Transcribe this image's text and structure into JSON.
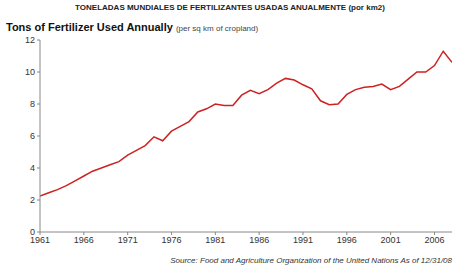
{
  "chart_data": {
    "type": "line",
    "title": "TONELADAS MUNDIALES DE FERTILIZANTES USADAS ANUALMENTE (por km2)",
    "subtitle": "Tons of Fertilizer Used Annually",
    "y_label": "(per sq km of cropland)",
    "annotations": [
      "Source:  Food and Agriculture Organization of the United Nations",
      "As of 12/31/08"
    ],
    "x": [
      1961,
      1962,
      1963,
      1964,
      1965,
      1966,
      1967,
      1968,
      1969,
      1970,
      1971,
      1972,
      1973,
      1974,
      1975,
      1976,
      1977,
      1978,
      1979,
      1980,
      1981,
      1982,
      1983,
      1984,
      1985,
      1986,
      1987,
      1988,
      1989,
      1990,
      1991,
      1992,
      1993,
      1994,
      1995,
      1996,
      1997,
      1998,
      1999,
      2000,
      2001,
      2002,
      2003,
      2004,
      2005,
      2006,
      2007,
      2008
    ],
    "series": [
      {
        "name": "Tons of Fertilizer Used Annually",
        "color": "#cc2222",
        "values": [
          2.25,
          2.45,
          2.65,
          2.9,
          3.2,
          3.5,
          3.8,
          4.0,
          4.2,
          4.4,
          4.8,
          5.1,
          5.4,
          5.95,
          5.7,
          6.3,
          6.6,
          6.9,
          7.5,
          7.7,
          8.0,
          7.9,
          7.9,
          8.55,
          8.85,
          8.65,
          8.9,
          9.3,
          9.6,
          9.5,
          9.2,
          8.95,
          8.2,
          7.95,
          8.0,
          8.6,
          8.9,
          9.05,
          9.1,
          9.25,
          8.9,
          9.1,
          9.55,
          10.0,
          10.0,
          10.4,
          11.3,
          10.6
        ]
      }
    ],
    "xlim": [
      1961,
      2008
    ],
    "xticks": [
      1961,
      1966,
      1971,
      1976,
      1981,
      1986,
      1991,
      1996,
      2001,
      2006
    ],
    "ylim": [
      0,
      12
    ],
    "yticks": [
      0,
      2,
      4,
      6,
      8,
      10,
      12
    ],
    "grid": false
  }
}
